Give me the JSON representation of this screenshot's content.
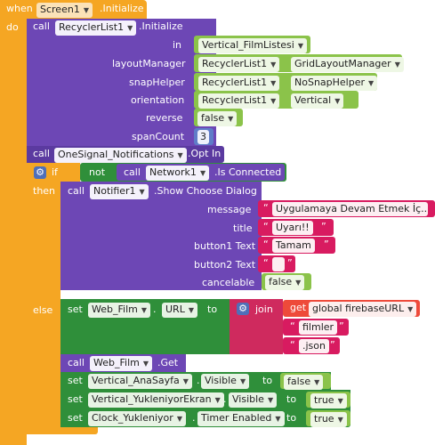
{
  "event": {
    "when": "when",
    "component": "Screen1",
    "event_name": ".Initialize",
    "do": "do"
  },
  "rv": {
    "call": "call",
    "component": "RecyclerList1",
    "method": ".Initialize",
    "params": [
      {
        "label": "in",
        "component": "Vertical_FilmListesi"
      },
      {
        "label": "layoutManager",
        "component": "RecyclerList1",
        "value": "GridLayoutManager"
      },
      {
        "label": "snapHelper",
        "component": "RecyclerList1",
        "value": "NoSnapHelper"
      },
      {
        "label": "orientation",
        "component": "RecyclerList1",
        "value": "Vertical"
      },
      {
        "label": "reverse",
        "value": "false"
      },
      {
        "label": "spanCount",
        "value": "3"
      }
    ]
  },
  "onesignal": {
    "call": "call",
    "component": "OneSignal_Notifications",
    "method": ".Opt In"
  },
  "if_block": {
    "if": "if",
    "not": "not",
    "call": "call",
    "component": "Network1",
    "method": ".Is Connected",
    "then": "then",
    "else": "else"
  },
  "notifier": {
    "call": "call",
    "component": "Notifier1",
    "method": ".Show Choose Dialog",
    "params": [
      {
        "label": "message",
        "value": "Uygulamaya Devam Etmek İç..."
      },
      {
        "label": "title",
        "value": "Uyarı!!"
      },
      {
        "label": "button1 Text",
        "value": "Tamam"
      },
      {
        "label": "button2 Text",
        "value": ""
      },
      {
        "label": "cancelable",
        "value": "false"
      }
    ]
  },
  "set_url": {
    "set": "set",
    "component": "Web_Film",
    "property": "URL",
    "to": "to",
    "join": "join",
    "get": "get",
    "variable": "global firebaseURL",
    "str1": "filmler",
    "str2": ".json"
  },
  "call_get": {
    "call": "call",
    "component": "Web_Film",
    "method": ".Get"
  },
  "sets": [
    {
      "set": "set",
      "component": "Vertical_AnaSayfa",
      "property": "Visible",
      "to": "to",
      "value": "false"
    },
    {
      "set": "set",
      "component": "Vertical_YukleniyorEkran",
      "property": "Visible",
      "to": "to",
      "value": "true"
    },
    {
      "set": "set",
      "component": "Clock_Yukleniyor",
      "property": "Timer Enabled",
      "to": "to",
      "value": "true"
    }
  ],
  "quote": "“",
  "quote_close": "”",
  "arrow": "▼",
  "gear_icon": "⚙"
}
